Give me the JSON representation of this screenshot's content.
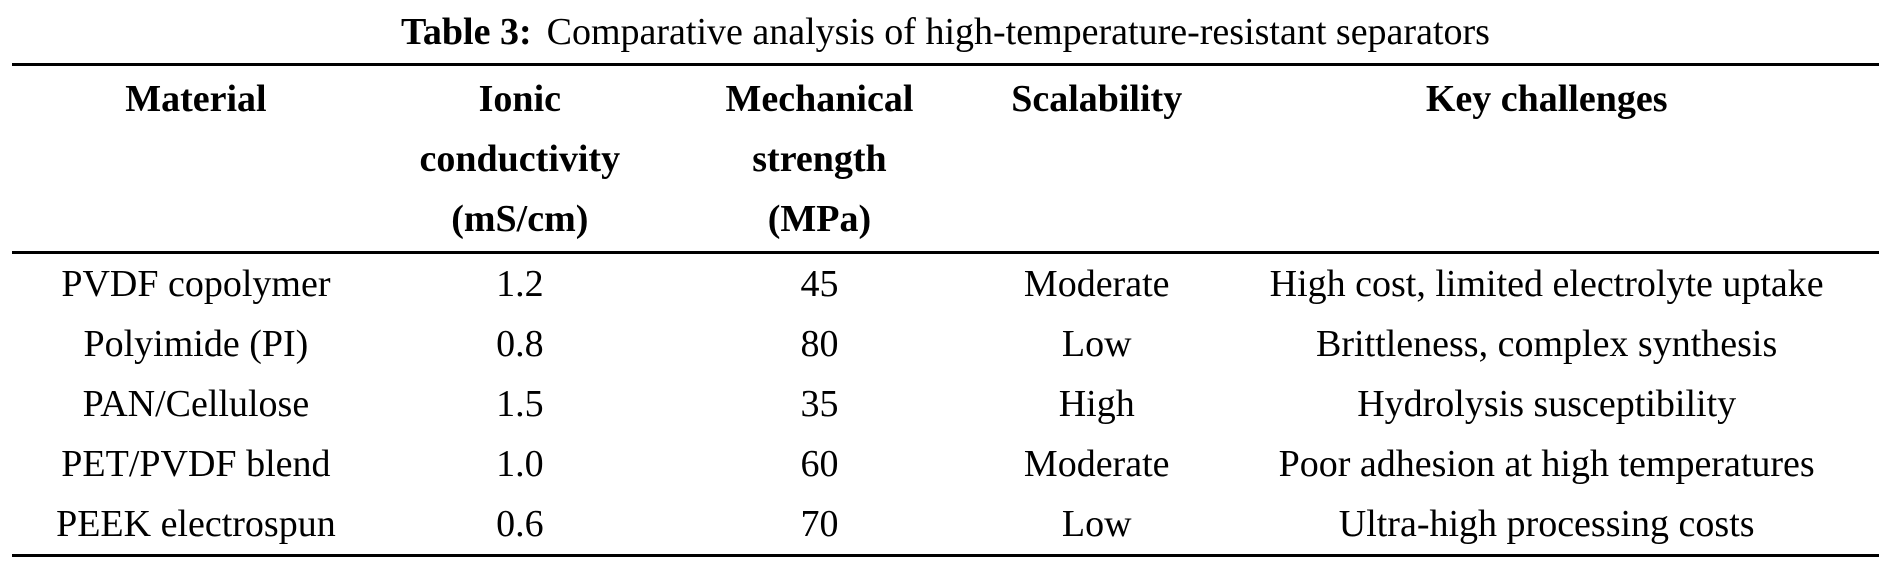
{
  "caption": {
    "label": "Table 3:",
    "text": "Comparative analysis of high-temperature-resistant separators"
  },
  "table": {
    "rule_color": "#000000",
    "headers": [
      {
        "lines": [
          "Material"
        ]
      },
      {
        "lines": [
          "Ionic",
          "conductivity",
          "(mS/cm)"
        ]
      },
      {
        "lines": [
          "Mechanical",
          "strength",
          "(MPa)"
        ]
      },
      {
        "lines": [
          "Scalability"
        ]
      },
      {
        "lines": [
          "Key challenges"
        ]
      }
    ],
    "rows": [
      {
        "material": "PVDF copolymer",
        "ionic_conductivity": "1.2",
        "mechanical_strength": "45",
        "scalability": "Moderate",
        "key_challenges": "High cost, limited electrolyte uptake"
      },
      {
        "material": "Polyimide (PI)",
        "ionic_conductivity": "0.8",
        "mechanical_strength": "80",
        "scalability": "Low",
        "key_challenges": "Brittleness, complex synthesis"
      },
      {
        "material": "PAN/Cellulose",
        "ionic_conductivity": "1.5",
        "mechanical_strength": "35",
        "scalability": "High",
        "key_challenges": "Hydrolysis susceptibility"
      },
      {
        "material": "PET/PVDF blend",
        "ionic_conductivity": "1.0",
        "mechanical_strength": "60",
        "scalability": "Moderate",
        "key_challenges": "Poor adhesion at high temperatures"
      },
      {
        "material": "PEEK electrospun",
        "ionic_conductivity": "0.6",
        "mechanical_strength": "70",
        "scalability": "Low",
        "key_challenges": "Ultra-high processing costs"
      }
    ]
  }
}
